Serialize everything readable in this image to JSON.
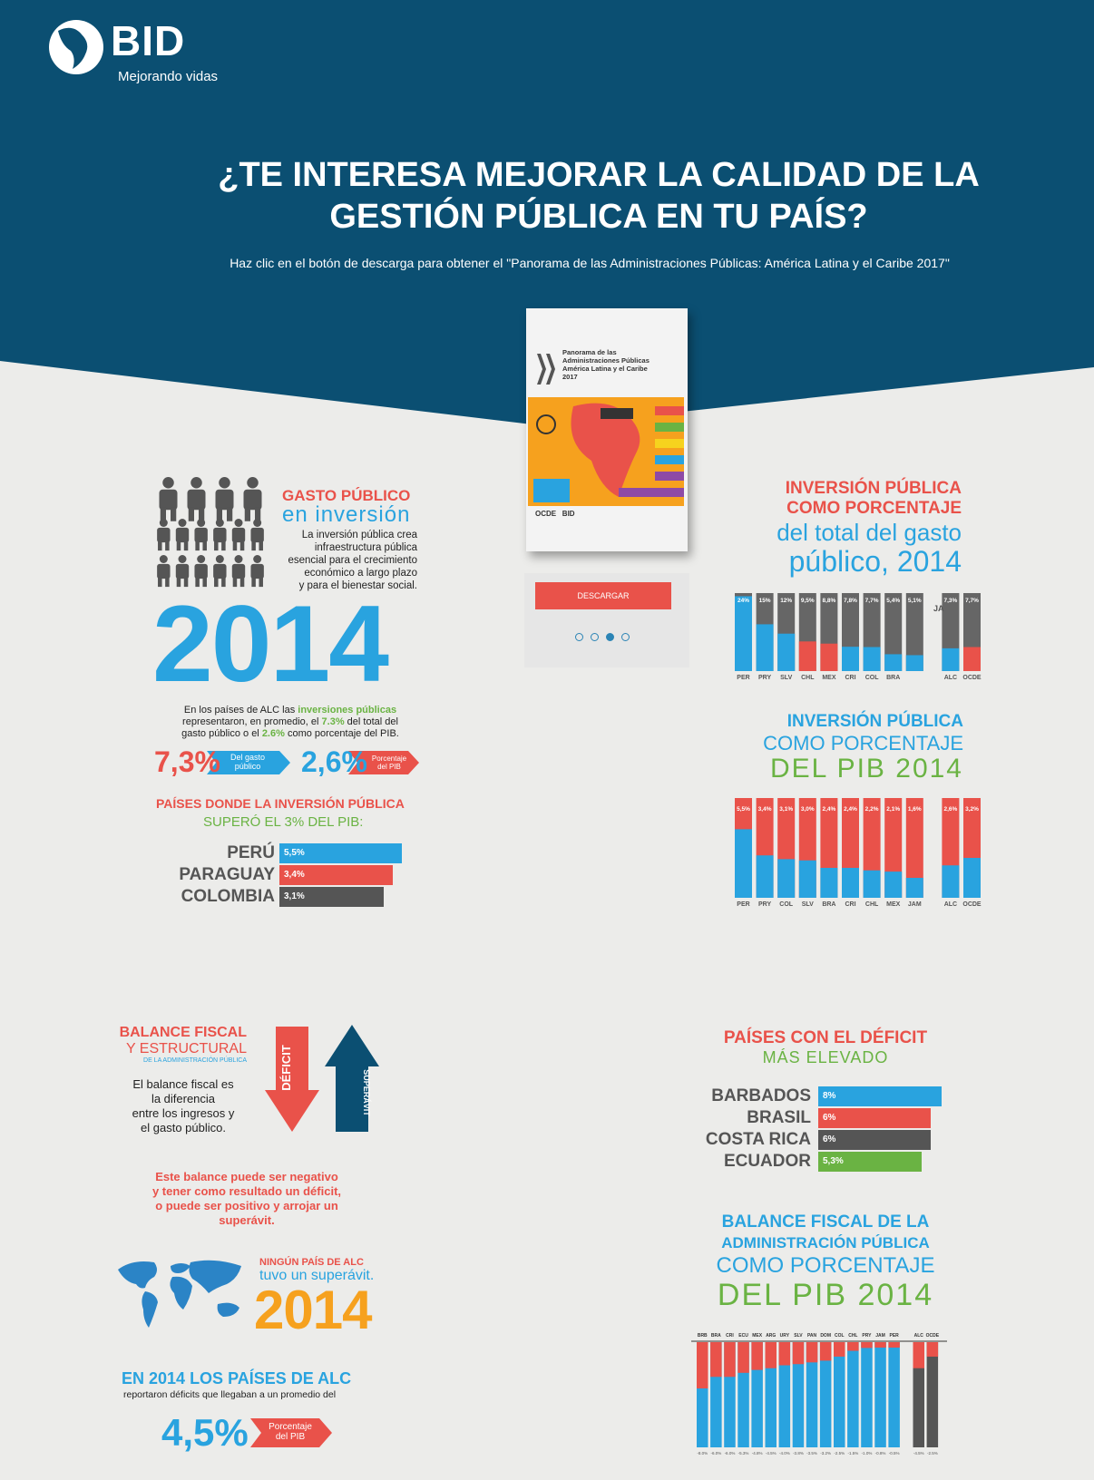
{
  "logo": {
    "name": "BID",
    "tagline": "Mejorando vidas"
  },
  "header": {
    "title_line1": "¿TE INTERESA MEJORAR LA CALIDAD DE LA",
    "title_line2": "GESTIÓN PÚBLICA EN TU PAÍS?",
    "subtitle": "Haz clic en el botón de descarga para obtener el \"Panorama de las Administraciones Públicas: América Latina y el Caribe 2017\""
  },
  "book": {
    "title_lines": [
      "Panorama de las",
      "Administraciones Públicas",
      "América Latina y el Caribe",
      "2017"
    ],
    "publisher1": "OCDE",
    "publisher2": "BID",
    "download_label": "DESCARGAR",
    "carousel_dots": 4,
    "carousel_active": 3
  },
  "gasto": {
    "heading1": "GASTO PÚBLICO",
    "heading2": "en inversión",
    "desc": [
      "La inversión pública crea",
      "infraestructura pública",
      "esencial para el crecimiento",
      "económico a largo plazo",
      "y para el bienestar social."
    ],
    "year": "2014",
    "summary_line1_a": "En los países de ALC las ",
    "summary_line1_b": "inversiones públicas",
    "summary_line2_a": "representaron, en promedio, el ",
    "summary_line2_b": "7.3%",
    "summary_line2_c": " del total del",
    "summary_line3_a": "gasto público o el ",
    "summary_line3_b": "2.6%",
    "summary_line3_c": " como porcentaje del PIB.",
    "stat1_value": "7,3%",
    "stat1_label_1": "Del gasto",
    "stat1_label_2": "público",
    "stat2_value": "2,6%",
    "stat2_label_1": "Porcentaje",
    "stat2_label_2": "del PIB"
  },
  "paises_pib": {
    "heading1": "PAÍSES DONDE LA INVERSIÓN PÚBLICA",
    "heading2": "SUPERÓ EL 3% DEL PIB:",
    "items": [
      {
        "country": "PERÚ",
        "value": "5,5%",
        "color": "#29a3df"
      },
      {
        "country": "PARAGUAY",
        "value": "3,4%",
        "color": "#e9524a"
      },
      {
        "country": "COLOMBIA",
        "value": "3,1%",
        "color": "#555555"
      }
    ]
  },
  "chart1": {
    "title1": "INVERSIÓN PÚBLICA",
    "title2": "COMO PORCENTAJE",
    "title3": "del total del gasto",
    "title4": "público, 2014",
    "stray_label": "JA"
  },
  "chart2": {
    "title1": "INVERSIÓN PÚBLICA",
    "title2": "COMO PORCENTAJE",
    "title3": "DEL PIB 2014"
  },
  "balance": {
    "heading1": "BALANCE FISCAL",
    "heading2": "Y ESTRUCTURAL",
    "heading3": "DE LA ADMINISTRACIÓN PÚBLICA",
    "desc": [
      "El balance fiscal es",
      "la diferencia",
      "entre los ingresos y",
      "el gasto público."
    ],
    "arrow_down": "DÉFICIT",
    "arrow_up": "SUPERÁVIT",
    "note": [
      "Este balance puede ser negativo",
      "y tener como resultado un déficit,",
      "o puede ser positivo y arrojar un",
      "superávit."
    ],
    "ningun1": "NINGÚN PAÍS DE ALC",
    "ningun2": "tuvo un superávit.",
    "year": "2014",
    "final1_a": "EN 2014",
    "final1_b": " LOS PAÍSES DE ALC",
    "final2": "reportaron déficits  que llegaban a un promedio del",
    "final_value": "4,5%",
    "final_label_1": "Porcentaje",
    "final_label_2": "del PIB"
  },
  "deficit": {
    "heading1": "PAÍSES CON EL DÉFICIT",
    "heading2": "MÁS ELEVADO",
    "items": [
      {
        "country": "BARBADOS",
        "value": "8%",
        "color": "#29a3df"
      },
      {
        "country": "BRASIL",
        "value": "6%",
        "color": "#e9524a"
      },
      {
        "country": "COSTA RICA",
        "value": "6%",
        "color": "#555555"
      },
      {
        "country": "ECUADOR",
        "value": "5,3%",
        "color": "#6ab343"
      }
    ]
  },
  "chart3": {
    "title1": "BALANCE FISCAL DE LA",
    "title2": "ADMINISTRACIÓN PÚBLICA",
    "title3": "COMO PORCENTAJE",
    "title4": "DEL PIB 2014"
  },
  "colors": {
    "navy": "#0b4f72",
    "red": "#e9524a",
    "blue": "#29a3df",
    "green": "#6ab343",
    "grey": "#555555",
    "orange": "#f6a11e"
  },
  "chart_data": [
    {
      "type": "bar",
      "stacked": true,
      "categories": [
        "PER",
        "PRY",
        "SLV",
        "CHL",
        "MEX",
        "CRI",
        "COL",
        "BRA",
        "",
        "ALC",
        "OCDE"
      ],
      "labels": [
        "24%",
        "15%",
        "12%",
        "9,5%",
        "8,8%",
        "7,8%",
        "7,7%",
        "5,4%",
        "5,1%",
        "7,3%",
        "7,7%"
      ],
      "values": [
        24,
        15,
        12,
        9.5,
        8.8,
        7.8,
        7.7,
        5.4,
        5.1,
        7.3,
        7.7
      ],
      "colors": [
        "blue",
        "blue",
        "blue",
        "red",
        "red",
        "blue",
        "blue",
        "blue",
        "blue",
        "blue",
        "red"
      ],
      "ylim": [
        0,
        40
      ]
    },
    {
      "type": "bar",
      "stacked": true,
      "categories": [
        "PER",
        "PRY",
        "COL",
        "SLV",
        "BRA",
        "CRI",
        "CHL",
        "MEX",
        "JAM",
        "ALC",
        "OCDE"
      ],
      "labels": [
        "5,5%",
        "3,4%",
        "3,1%",
        "3,0%",
        "2,4%",
        "2,4%",
        "2,2%",
        "2,1%",
        "1,6%",
        "2,6%",
        "3,2%"
      ],
      "values": [
        5.5,
        3.4,
        3.1,
        3.0,
        2.4,
        2.4,
        2.2,
        2.1,
        1.6,
        2.6,
        3.2
      ],
      "ylim": [
        0,
        8
      ]
    },
    {
      "type": "bar",
      "stacked": true,
      "categories": [
        "BRB",
        "BRA",
        "CRI",
        "ECU",
        "MEX",
        "ARG",
        "URY",
        "SLV",
        "PAN",
        "DOM",
        "COL",
        "CHL",
        "PRY",
        "JAM",
        "PER",
        "ALC",
        "OCDE"
      ],
      "values": [
        -8.0,
        -6.0,
        -6.0,
        -5.3,
        -4.8,
        -4.5,
        -4.0,
        -3.8,
        -3.5,
        -3.2,
        -2.5,
        -1.5,
        -1.0,
        -0.8,
        -0.5,
        -4.5,
        -2.5
      ],
      "ylim": [
        -10,
        0
      ]
    }
  ]
}
